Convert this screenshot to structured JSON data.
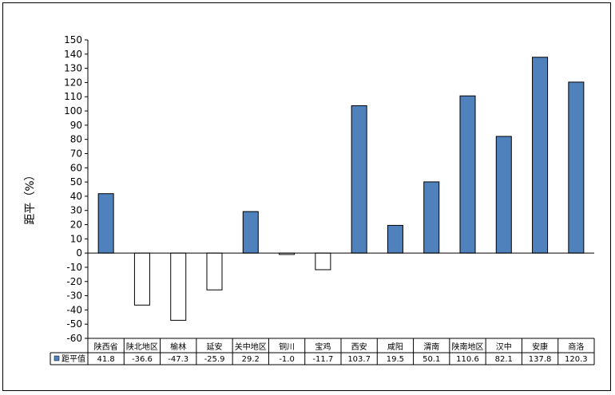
{
  "chart_data": {
    "type": "bar",
    "title": "",
    "xlabel": "",
    "ylabel": "距平（%）",
    "ylim": [
      -60,
      150
    ],
    "ytick_step": 10,
    "grid": false,
    "legend": "data-table-left",
    "categories": [
      "陕西省",
      "陕北地区",
      "榆林",
      "延安",
      "关中地区",
      "铜川",
      "宝鸡",
      "西安",
      "咸阳",
      "渭南",
      "陕南地区",
      "汉中",
      "安康",
      "商洛"
    ],
    "series": [
      {
        "name": "距平值",
        "color": "#4f81bd",
        "negative_color": "#ffffff",
        "values": [
          41.8,
          -36.6,
          -47.3,
          -25.9,
          29.2,
          -1.0,
          -11.7,
          103.7,
          19.5,
          50.1,
          110.6,
          82.1,
          137.8,
          120.3
        ],
        "labels": [
          "41.8",
          "-36.6",
          "-47.3",
          "-25.9",
          "29.2",
          "-1.0",
          "-11.7",
          "103.7",
          "19.5",
          "50.1",
          "110.6",
          "82.1",
          "137.8",
          "120.3"
        ]
      }
    ]
  }
}
